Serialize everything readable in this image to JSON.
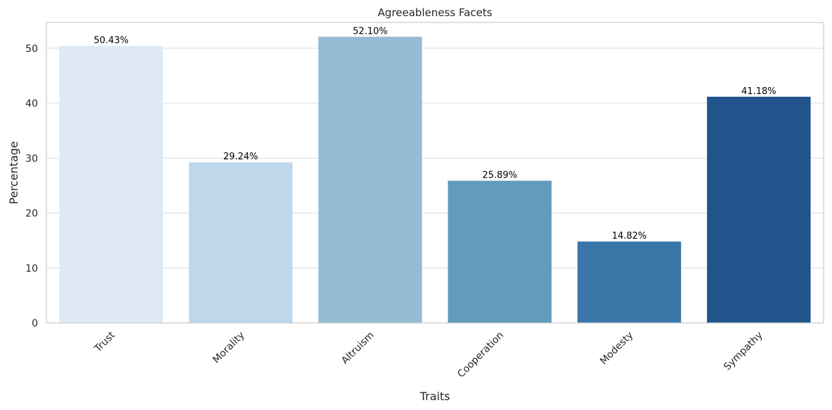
{
  "chart_data": {
    "type": "bar",
    "title": "Agreeableness Facets",
    "xlabel": "Traits",
    "ylabel": "Percentage",
    "categories": [
      "Trust",
      "Morality",
      "Altruism",
      "Cooperation",
      "Modesty",
      "Sympathy"
    ],
    "values": [
      50.43,
      29.24,
      52.1,
      25.89,
      14.82,
      41.18
    ],
    "value_labels": [
      "50.43%",
      "29.24%",
      "52.10%",
      "25.89%",
      "14.82%",
      "41.18%"
    ],
    "colors": [
      "#dfe9f5",
      "#c0d6e9",
      "#94bcd4",
      "#629bbe",
      "#3a77a8",
      "#20548b"
    ],
    "yticks": [
      0,
      10,
      20,
      30,
      40,
      50
    ],
    "ylim": [
      0,
      54.7
    ],
    "grid": "horizontal",
    "legend": "none"
  }
}
